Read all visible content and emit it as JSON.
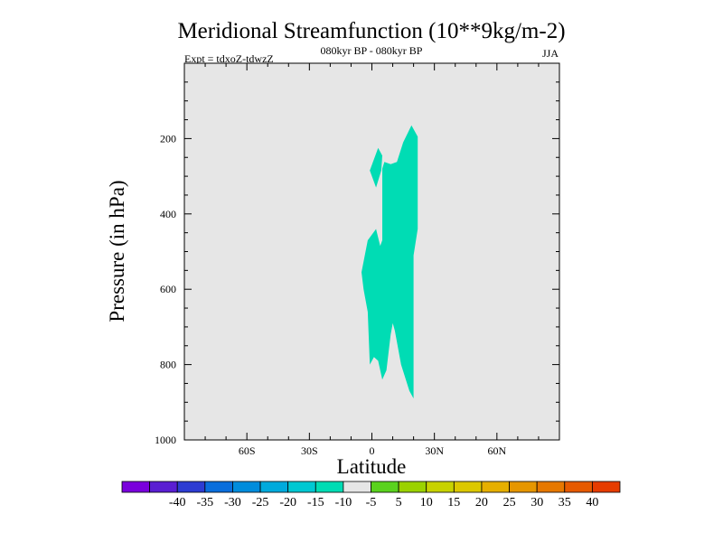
{
  "chart_data": {
    "type": "contour",
    "title": "Meridional Streamfunction (10**9kg/m-2)",
    "subtitle": "080kyr BP - 080kyr BP",
    "experiment": "Expt = tdxoZ-tdwzZ",
    "season": "JJA",
    "xlabel": "Latitude",
    "ylabel": "Pressure (in hPa)",
    "xlim": [
      -90,
      90
    ],
    "ylim": [
      1000,
      0
    ],
    "x_ticks": [
      {
        "value": -60,
        "label": "60S"
      },
      {
        "value": -30,
        "label": "30S"
      },
      {
        "value": 0,
        "label": "0"
      },
      {
        "value": 30,
        "label": "30N"
      },
      {
        "value": 60,
        "label": "60N"
      }
    ],
    "y_ticks": [
      {
        "value": 200,
        "label": "200"
      },
      {
        "value": 400,
        "label": "400"
      },
      {
        "value": 600,
        "label": "600"
      },
      {
        "value": 800,
        "label": "800"
      },
      {
        "value": 1000,
        "label": "1000"
      }
    ],
    "background_color": "#e6e6e6",
    "regions": [
      {
        "name": "-10 to -5",
        "color": "#00dcb4",
        "points": [
          [
            3,
            225
          ],
          [
            5,
            245
          ],
          [
            4.5,
            285
          ],
          [
            2,
            330
          ],
          [
            -1,
            285
          ]
        ]
      },
      {
        "name": "-10 to -5",
        "color": "#00dcb4",
        "points": [
          [
            6,
            262
          ],
          [
            9,
            268
          ],
          [
            12,
            262
          ],
          [
            15,
            210
          ],
          [
            19,
            165
          ],
          [
            22,
            195
          ],
          [
            22,
            440
          ],
          [
            20,
            510
          ],
          [
            20,
            890
          ],
          [
            18,
            870
          ],
          [
            14,
            800
          ],
          [
            11,
            710
          ],
          [
            10,
            690
          ],
          [
            9,
            720
          ],
          [
            7,
            815
          ],
          [
            5,
            840
          ],
          [
            3,
            790
          ],
          [
            1,
            780
          ],
          [
            -1,
            800
          ],
          [
            -2,
            660
          ],
          [
            -4,
            600
          ],
          [
            -5,
            555
          ],
          [
            -2,
            470
          ],
          [
            2,
            440
          ],
          [
            4,
            485
          ],
          [
            5,
            470
          ],
          [
            5,
            280
          ]
        ]
      }
    ],
    "colorbar": {
      "colors": [
        "#7a00dc",
        "#5a1ed2",
        "#2d3cd2",
        "#0a6edc",
        "#008cdc",
        "#00aadc",
        "#00c8d2",
        "#00dcb4",
        "#e6e6e6",
        "#5ad21e",
        "#9bd200",
        "#c8d200",
        "#dcc800",
        "#e6af00",
        "#e69600",
        "#e67800",
        "#e65a00",
        "#e63c00"
      ],
      "labels": [
        "-40",
        "-35",
        "-30",
        "-25",
        "-20",
        "-15",
        "-10",
        "-5",
        "5",
        "10",
        "15",
        "20",
        "25",
        "30",
        "35",
        "40"
      ]
    }
  }
}
